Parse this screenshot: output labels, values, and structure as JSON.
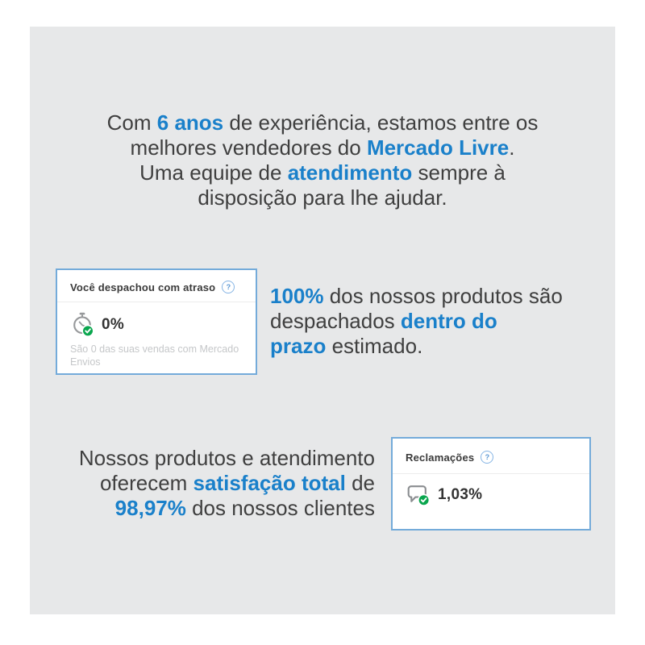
{
  "colors": {
    "accent_blue": "#1a80ca",
    "text_dark": "#3f3f3f",
    "panel_bg": "#e7e8e9",
    "card_border": "#74abda",
    "badge_green": "#0aa64e",
    "caption_gray": "#c5c7c9"
  },
  "icons": {
    "shipping_metric": "stopwatch-check-icon",
    "claims_metric": "speech-bubble-check-icon",
    "help": "question-circle-icon"
  },
  "intro": {
    "lines": [
      [
        {
          "t": "Com "
        },
        {
          "t": "6 anos",
          "hl": true
        },
        {
          "t": " de experiência, estamos entre os"
        }
      ],
      [
        {
          "t": "melhores vendedores do "
        },
        {
          "t": "Mercado Livre",
          "hl": true
        },
        {
          "t": "."
        }
      ],
      [
        {
          "t": "Uma equipe de "
        },
        {
          "t": "atendimento",
          "hl": true
        },
        {
          "t": " sempre à"
        }
      ],
      [
        {
          "t": "disposição para lhe ajudar."
        }
      ]
    ]
  },
  "shipping_card": {
    "title": "Você despachou com atraso",
    "help_icon": "?",
    "value": "0%",
    "caption": "São 0 das suas vendas com Mercado Envios"
  },
  "dispatch": {
    "lines": [
      [
        {
          "t": "100%",
          "hl": true
        },
        {
          "t": " dos nossos produtos são"
        }
      ],
      [
        {
          "t": "despachados "
        },
        {
          "t": "dentro do",
          "hl": true
        }
      ],
      [
        {
          "t": "prazo",
          "hl": true
        },
        {
          "t": " estimado."
        }
      ]
    ]
  },
  "satisfaction": {
    "lines": [
      [
        {
          "t": "Nossos produtos e atendimento"
        }
      ],
      [
        {
          "t": "oferecem "
        },
        {
          "t": "satisfação total",
          "hl": true
        },
        {
          "t": " de"
        }
      ],
      [
        {
          "t": "98,97%",
          "hl": true
        },
        {
          "t": " dos nossos clientes"
        }
      ]
    ]
  },
  "claims_card": {
    "title": "Reclamações",
    "help_icon": "?",
    "value": "1,03%"
  }
}
